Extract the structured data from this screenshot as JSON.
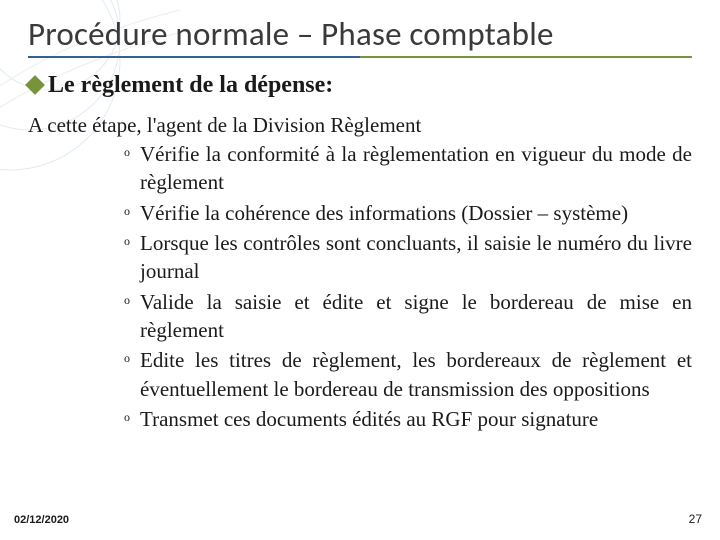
{
  "colors": {
    "title": "#3a3a3a",
    "underline_left": "#376092",
    "underline_right": "#77933c",
    "diamond": "#77933c",
    "subtitle": "#1a1a1a",
    "body": "#1a1a1a",
    "marker": "#1a1a1a",
    "footer": "#1a1a1a",
    "deco_stroke": "#8bb3d6"
  },
  "fonts": {
    "title_size": 33,
    "subtitle_size": 24,
    "intro_size": 21,
    "item_size": 21,
    "marker_size": 12
  },
  "title": "Procédure normale – Phase comptable",
  "subtitle": "Le règlement de la dépense:",
  "intro": "A cette étape, l'agent de la Division Règlement",
  "bullet_marker": "o",
  "items": [
    "Vérifie la conformité à la règlementation en vigueur du mode de règlement",
    "Vérifie la cohérence des informations (Dossier – système)",
    "Lorsque les  contrôles sont concluants, il saisie le numéro du livre journal",
    "Valide la saisie et édite et signe le bordereau de mise en règlement",
    "Edite les titres de règlement, les bordereaux de règlement et éventuellement le bordereau de transmission des oppositions",
    "Transmet ces documents édités au RGF pour signature"
  ],
  "footer": {
    "date": "02/12/2020",
    "page": "27"
  }
}
